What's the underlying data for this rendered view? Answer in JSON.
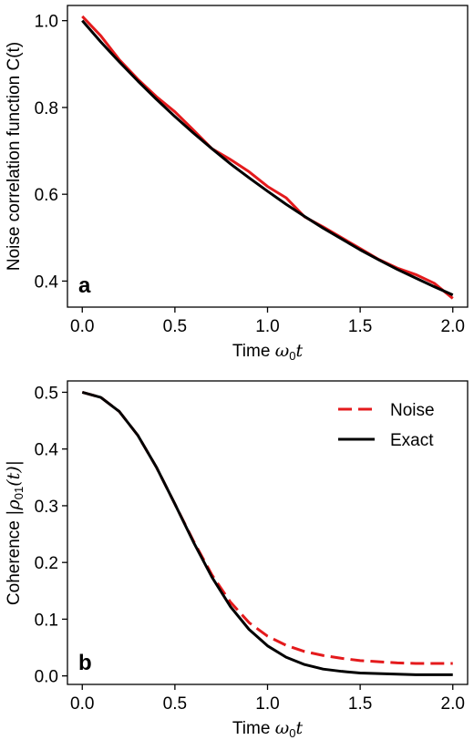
{
  "colors": {
    "noise": "#e41a1c",
    "exact": "#000000"
  },
  "chart_data": [
    {
      "type": "line",
      "panel_label": "a",
      "xlabel": "Time ω₀t",
      "xlabel_text": "Time ",
      "xlabel_math": "ω",
      "xlabel_sub": "0",
      "xlabel_tail": "t",
      "ylabel": "Noise correlation function C(t)",
      "xlim": [
        -0.08,
        2.08
      ],
      "ylim": [
        0.34,
        1.035
      ],
      "xticks": [
        0.0,
        0.5,
        1.0,
        1.5,
        2.0
      ],
      "xtick_labels": [
        "0.0",
        "0.5",
        "1.0",
        "1.5",
        "2.0"
      ],
      "yticks": [
        0.4,
        0.6,
        0.8,
        1.0
      ],
      "ytick_labels": [
        "0.4",
        "0.6",
        "0.8",
        "1.0"
      ],
      "grid": false,
      "series": [
        {
          "key": "noise",
          "style": "solid",
          "x": [
            0.0,
            0.1,
            0.2,
            0.3,
            0.4,
            0.5,
            0.6,
            0.7,
            0.8,
            0.9,
            1.0,
            1.1,
            1.2,
            1.3,
            1.4,
            1.5,
            1.6,
            1.7,
            1.8,
            1.9,
            2.0
          ],
          "y": [
            1.01,
            0.965,
            0.91,
            0.865,
            0.825,
            0.79,
            0.748,
            0.705,
            0.68,
            0.652,
            0.618,
            0.592,
            0.548,
            0.525,
            0.5,
            0.475,
            0.45,
            0.43,
            0.415,
            0.395,
            0.36
          ]
        },
        {
          "key": "exact",
          "style": "solid",
          "x": [
            0.0,
            0.1,
            0.2,
            0.3,
            0.4,
            0.5,
            0.6,
            0.7,
            0.8,
            0.9,
            1.0,
            1.1,
            1.2,
            1.3,
            1.4,
            1.5,
            1.6,
            1.7,
            1.8,
            1.9,
            2.0
          ],
          "y": [
            1.0,
            0.951,
            0.905,
            0.861,
            0.819,
            0.779,
            0.741,
            0.705,
            0.67,
            0.638,
            0.607,
            0.577,
            0.549,
            0.522,
            0.497,
            0.472,
            0.449,
            0.427,
            0.407,
            0.387,
            0.368
          ]
        }
      ]
    },
    {
      "type": "line",
      "panel_label": "b",
      "xlabel": "Time ω₀t",
      "xlabel_text": "Time ",
      "xlabel_math": "ω",
      "xlabel_sub": "0",
      "xlabel_tail": "t",
      "ylabel": "Coherence |ρ₀₁(t)|",
      "ylabel_text": "Coherence ",
      "ylabel_math": "|ρ",
      "ylabel_sub": "01",
      "ylabel_tail": "(t)|",
      "xlim": [
        -0.08,
        2.08
      ],
      "ylim": [
        -0.015,
        0.52
      ],
      "xticks": [
        0.0,
        0.5,
        1.0,
        1.5,
        2.0
      ],
      "xtick_labels": [
        "0.0",
        "0.5",
        "1.0",
        "1.5",
        "2.0"
      ],
      "yticks": [
        0.0,
        0.1,
        0.2,
        0.3,
        0.4,
        0.5
      ],
      "ytick_labels": [
        "0.0",
        "0.1",
        "0.2",
        "0.3",
        "0.4",
        "0.5"
      ],
      "grid": false,
      "legend_position": "top-right",
      "series": [
        {
          "key": "noise",
          "name": "Noise",
          "style": "dashed",
          "x": [
            0.0,
            0.1,
            0.2,
            0.3,
            0.4,
            0.5,
            0.6,
            0.7,
            0.8,
            0.9,
            1.0,
            1.1,
            1.2,
            1.3,
            1.4,
            1.5,
            1.6,
            1.7,
            1.8,
            1.9,
            2.0
          ],
          "y": [
            0.5,
            0.491,
            0.466,
            0.424,
            0.368,
            0.303,
            0.238,
            0.178,
            0.13,
            0.094,
            0.07,
            0.054,
            0.043,
            0.036,
            0.031,
            0.027,
            0.025,
            0.023,
            0.022,
            0.022,
            0.022
          ]
        },
        {
          "key": "exact",
          "name": "Exact",
          "style": "solid",
          "x": [
            0.0,
            0.1,
            0.2,
            0.3,
            0.4,
            0.5,
            0.6,
            0.7,
            0.8,
            0.9,
            1.0,
            1.1,
            1.2,
            1.3,
            1.4,
            1.5,
            1.6,
            1.7,
            1.8,
            1.9,
            2.0
          ],
          "y": [
            0.5,
            0.491,
            0.466,
            0.424,
            0.368,
            0.303,
            0.236,
            0.174,
            0.122,
            0.082,
            0.053,
            0.033,
            0.02,
            0.012,
            0.008,
            0.005,
            0.004,
            0.003,
            0.002,
            0.002,
            0.002
          ]
        }
      ]
    }
  ]
}
